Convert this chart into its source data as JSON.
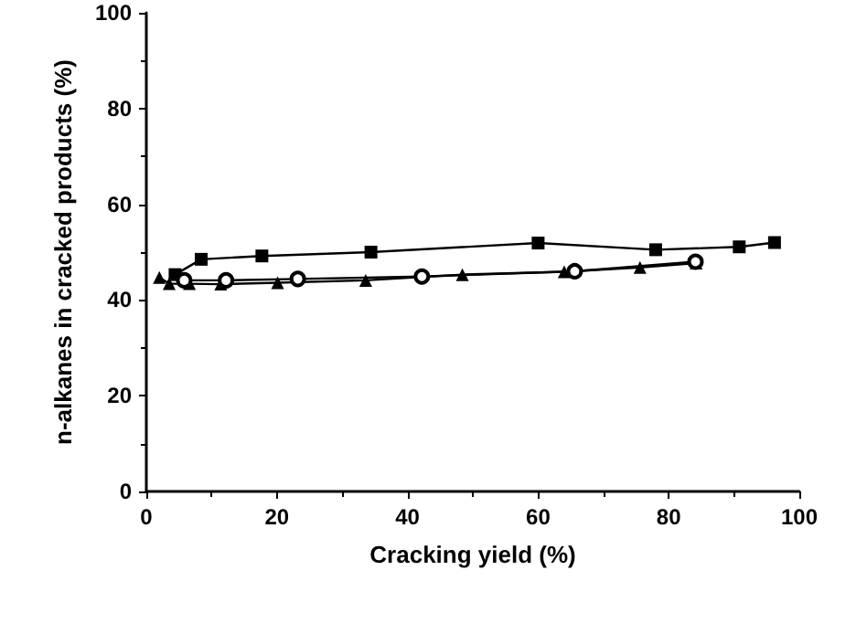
{
  "chart_data": {
    "type": "line",
    "xlabel": "Cracking yield (%)",
    "ylabel": "n-alkanes in cracked products (%)",
    "xlim": [
      0,
      100
    ],
    "xticks": [
      0,
      20,
      40,
      60,
      80,
      100
    ],
    "ylim": [
      0,
      100
    ],
    "yticks": [
      0,
      20,
      40,
      60,
      80,
      100
    ],
    "grid": false,
    "line_style": "solid",
    "series": [
      {
        "color": "#000000",
        "marker": "square",
        "x": [
          4.4,
          8.4,
          17.7,
          34.4,
          60.0,
          78.0,
          90.8,
          96.2
        ],
        "values": [
          45.3,
          48.5,
          49.2,
          50.0,
          51.9,
          50.5,
          51.1,
          52.0
        ]
      },
      {
        "color": "#000000",
        "marker": "triangle",
        "x": [
          2.0,
          3.5,
          6.6,
          11.4,
          20.1,
          33.6,
          48.4,
          64.0,
          75.6,
          84.2
        ],
        "values": [
          44.7,
          43.4,
          43.4,
          43.3,
          43.6,
          44.1,
          45.3,
          45.9,
          46.8,
          47.7
        ]
      },
      {
        "color": "#000000",
        "marker": "circle",
        "x": [
          5.8,
          12.2,
          23.2,
          42.2,
          65.6,
          84.1
        ],
        "values": [
          44.1,
          44.1,
          44.4,
          44.9,
          46.0,
          48.0
        ]
      }
    ]
  }
}
